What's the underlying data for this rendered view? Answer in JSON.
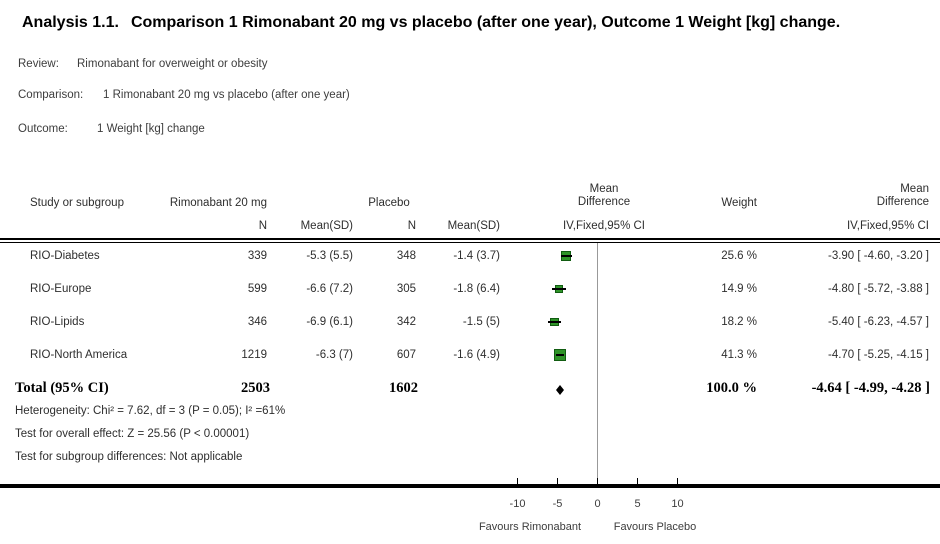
{
  "title": {
    "analysis_label": "Analysis 1.1.",
    "analysis_text": "Comparison 1 Rimonabant 20 mg vs placebo (after one year), Outcome 1 Weight [kg] change."
  },
  "meta": {
    "review_label": "Review:",
    "review_value": "Rimonabant for overweight or obesity",
    "comparison_label": "Comparison:",
    "comparison_value": "1 Rimonabant 20 mg vs placebo (after one year)",
    "outcome_label": "Outcome:",
    "outcome_value": "1 Weight [kg] change"
  },
  "table": {
    "headers": {
      "study": "Study or subgroup",
      "group1": "Rimonabant 20 mg",
      "group2": "Placebo",
      "n": "N",
      "mean_sd": "Mean(SD)",
      "md_line1": "Mean",
      "md_line2": "Difference",
      "md_method": "IV,Fixed,95% CI",
      "weight": "Weight"
    },
    "rows": [
      {
        "study": "RIO-Diabetes",
        "n1": "339",
        "mean_sd1": "-5.3 (5.5)",
        "n2": "348",
        "mean_sd2": "-1.4 (3.7)",
        "weight": "25.6 %",
        "md_ci": "-3.90 [ -4.60, -3.20 ]"
      },
      {
        "study": "RIO-Europe",
        "n1": "599",
        "mean_sd1": "-6.6 (7.2)",
        "n2": "305",
        "mean_sd2": "-1.8 (6.4)",
        "weight": "14.9 %",
        "md_ci": "-4.80 [ -5.72, -3.88 ]"
      },
      {
        "study": "RIO-Lipids",
        "n1": "346",
        "mean_sd1": "-6.9 (6.1)",
        "n2": "342",
        "mean_sd2": "-1.5 (5)",
        "weight": "18.2 %",
        "md_ci": "-5.40 [ -6.23, -4.57 ]"
      },
      {
        "study": "RIO-North America",
        "n1": "1219",
        "mean_sd1": "-6.3 (7)",
        "n2": "607",
        "mean_sd2": "-1.6 (4.9)",
        "weight": "41.3 %",
        "md_ci": "-4.70 [ -5.25, -4.15 ]"
      }
    ],
    "total": {
      "label": "Total (95% CI)",
      "n1": "2503",
      "n2": "1602",
      "weight": "100.0 %",
      "md_ci": "-4.64 [ -4.99, -4.28 ]"
    },
    "footnotes": {
      "heterogeneity": "Heterogeneity: Chi² = 7.62, df = 3 (P = 0.05); I² =61%",
      "overall_effect": "Test for overall effect: Z = 25.56 (P < 0.00001)",
      "subgroup_diff": "Test for subgroup differences: Not applicable"
    }
  },
  "axis": {
    "left_label": "Favours Rimonabant",
    "right_label": "Favours Placebo"
  },
  "chart_data": {
    "type": "forest",
    "effect_measure": "Mean Difference (IV, Fixed, 95% CI)",
    "x_axis": {
      "ticks": [
        -10,
        -5,
        0,
        5,
        10
      ],
      "range": [
        -11.5,
        11.5
      ],
      "zero_line": 0,
      "left_label": "Favours Rimonabant",
      "right_label": "Favours Placebo"
    },
    "studies": [
      {
        "name": "RIO-Diabetes",
        "md": -3.9,
        "ci_low": -4.6,
        "ci_high": -3.2,
        "weight_pct": 25.6
      },
      {
        "name": "RIO-Europe",
        "md": -4.8,
        "ci_low": -5.72,
        "ci_high": -3.88,
        "weight_pct": 14.9
      },
      {
        "name": "RIO-Lipids",
        "md": -5.4,
        "ci_low": -6.23,
        "ci_high": -4.57,
        "weight_pct": 18.2
      },
      {
        "name": "RIO-North America",
        "md": -4.7,
        "ci_low": -5.25,
        "ci_high": -4.15,
        "weight_pct": 41.3
      }
    ],
    "total": {
      "name": "Total (95% CI)",
      "md": -4.64,
      "ci_low": -4.99,
      "ci_high": -4.28,
      "weight_pct": 100.0
    },
    "heterogeneity": {
      "chi2": 7.62,
      "df": 3,
      "p": 0.05,
      "i2_pct": 61
    },
    "overall_effect": {
      "z": 25.56,
      "p": "< 0.00001"
    }
  },
  "colors": {
    "square_fill": "#2e9428",
    "square_border": "#115c11",
    "ci_line": "#000000",
    "diamond": "#000000",
    "zero_line": "#999999",
    "rule": "#000000"
  }
}
